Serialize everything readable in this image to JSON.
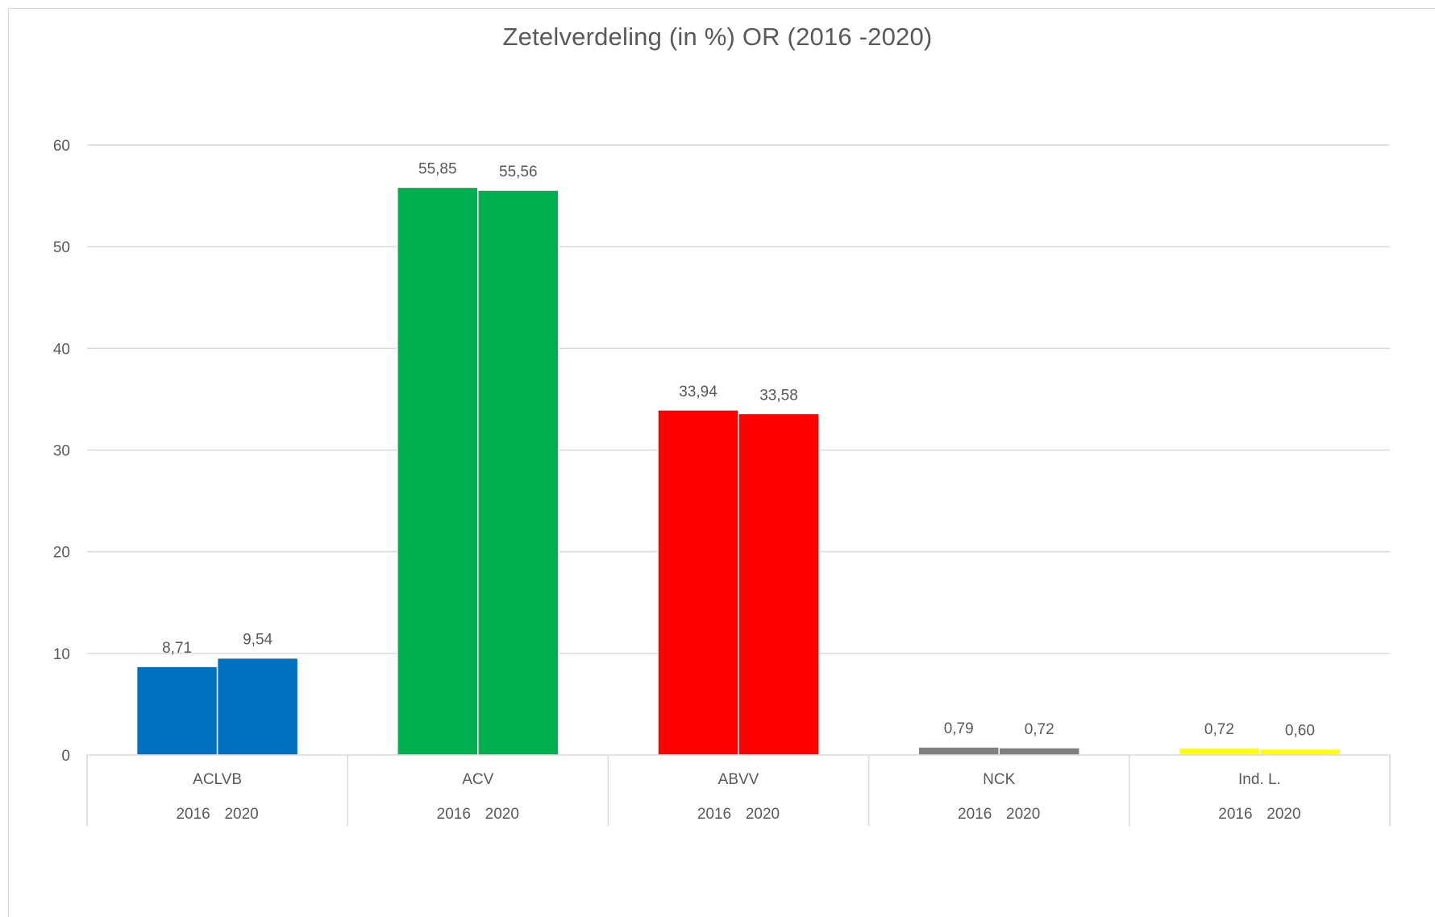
{
  "chart_data": {
    "type": "bar",
    "title": "Zetelverdeling (in %) OR (2016 -2020)",
    "xlabel": "",
    "ylabel": "",
    "categories": [
      "ACLVB",
      "ACV",
      "ABVV",
      "NCK",
      "Ind. L."
    ],
    "sub_categories": [
      "2016",
      "2020"
    ],
    "colors": [
      "#0070c0",
      "#00b050",
      "#ff0000",
      "#7f7f7f",
      "#ffff00"
    ],
    "values": [
      [
        8.71,
        9.54
      ],
      [
        55.85,
        55.56
      ],
      [
        33.94,
        33.58
      ],
      [
        0.79,
        0.72
      ],
      [
        0.72,
        0.6
      ]
    ],
    "data_labels": [
      [
        "8,71",
        "9,54"
      ],
      [
        "55,85",
        "55,56"
      ],
      [
        "33,94",
        "33,58"
      ],
      [
        "0,79",
        "0,72"
      ],
      [
        "0,72",
        "0,60"
      ]
    ],
    "y_ticks": [
      0,
      10,
      20,
      30,
      40,
      50,
      60
    ],
    "ylim": [
      0,
      60
    ],
    "grid": true,
    "legend": "none"
  }
}
